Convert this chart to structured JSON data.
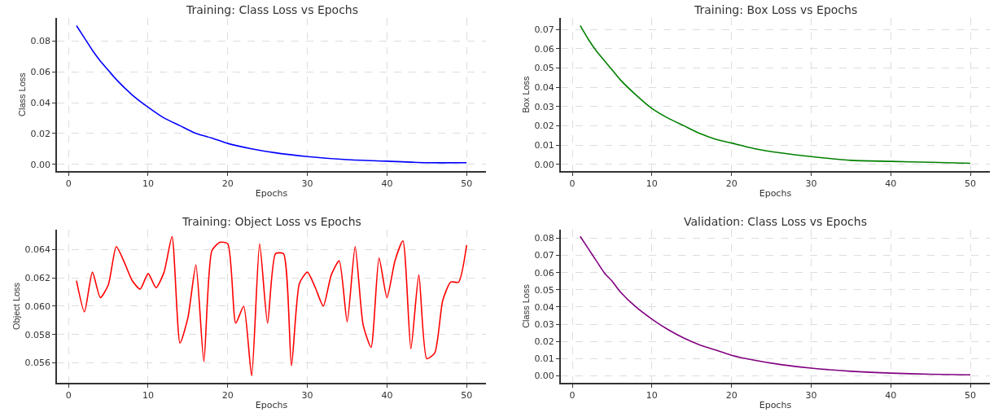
{
  "chart_data": [
    {
      "type": "line",
      "title": "Training: Class Loss vs Epochs",
      "xlabel": "Epochs",
      "ylabel": "Class Loss",
      "grid": true,
      "x": [
        1,
        2,
        3,
        4,
        5,
        6,
        8,
        10,
        12,
        14,
        16,
        18,
        20,
        23,
        26,
        30,
        35,
        40,
        45,
        50
      ],
      "series": [
        {
          "color": "#0000ff",
          "values": [
            0.09,
            0.082,
            0.074,
            0.067,
            0.061,
            0.055,
            0.045,
            0.037,
            0.03,
            0.025,
            0.02,
            0.017,
            0.0135,
            0.01,
            0.0074,
            0.005,
            0.003,
            0.002,
            0.001,
            0.001
          ]
        }
      ],
      "xlim": [
        -1.45,
        52.45
      ],
      "xticks": [
        0,
        10,
        20,
        30,
        40,
        50
      ],
      "ylim": [
        -0.0045,
        0.095
      ],
      "yticks": [
        {
          "value": 0,
          "label": "0.00"
        },
        {
          "value": 0.02,
          "label": "0.02"
        },
        {
          "value": 0.04,
          "label": "0.04"
        },
        {
          "value": 0.06,
          "label": "0.06"
        },
        {
          "value": 0.08,
          "label": "0.08"
        }
      ]
    },
    {
      "type": "line",
      "title": "Training: Box Loss vs Epochs",
      "xlabel": "Epochs",
      "ylabel": "Box Loss",
      "grid": true,
      "x": [
        1,
        2,
        3,
        4,
        5,
        6,
        8,
        10,
        12,
        14,
        16,
        18,
        20,
        23,
        26,
        30,
        35,
        40,
        45,
        50
      ],
      "series": [
        {
          "color": "#008000",
          "values": [
            0.072,
            0.065,
            0.059,
            0.054,
            0.049,
            0.044,
            0.036,
            0.029,
            0.024,
            0.02,
            0.016,
            0.013,
            0.011,
            0.008,
            0.006,
            0.004,
            0.002,
            0.0015,
            0.001,
            0.0005
          ]
        }
      ],
      "xlim": [
        -1.45,
        52.45
      ],
      "xticks": [
        0,
        10,
        20,
        30,
        40,
        50
      ],
      "ylim": [
        -0.0036,
        0.076
      ],
      "yticks": [
        {
          "value": 0,
          "label": "0.00"
        },
        {
          "value": 0.01,
          "label": "0.01"
        },
        {
          "value": 0.02,
          "label": "0.02"
        },
        {
          "value": 0.03,
          "label": "0.03"
        },
        {
          "value": 0.04,
          "label": "0.04"
        },
        {
          "value": 0.05,
          "label": "0.05"
        },
        {
          "value": 0.06,
          "label": "0.06"
        },
        {
          "value": 0.07,
          "label": "0.07"
        }
      ]
    },
    {
      "type": "line",
      "title": "Training: Object Loss vs Epochs",
      "xlabel": "Epochs",
      "ylabel": "Object Loss",
      "grid": true,
      "x": [
        1,
        2,
        3,
        4,
        5,
        6,
        7,
        8,
        9,
        10,
        11,
        12,
        13,
        14,
        15,
        16,
        17,
        18,
        19,
        20,
        21,
        22,
        23,
        24,
        25,
        26,
        27,
        28,
        29,
        30,
        31,
        32,
        33,
        34,
        35,
        36,
        37,
        38,
        39,
        40,
        41,
        42,
        43,
        44,
        45,
        46,
        47,
        48,
        49,
        50
      ],
      "series": [
        {
          "color": "#ff0000",
          "values": [
            0.0618,
            0.0596,
            0.0624,
            0.0606,
            0.0615,
            0.0642,
            0.0631,
            0.0618,
            0.0612,
            0.0623,
            0.0613,
            0.0624,
            0.0649,
            0.0574,
            0.0592,
            0.0629,
            0.0561,
            0.0639,
            0.0645,
            0.0644,
            0.0588,
            0.06,
            0.0551,
            0.0644,
            0.0588,
            0.0637,
            0.0637,
            0.0558,
            0.0616,
            0.0624,
            0.0613,
            0.06,
            0.0622,
            0.0632,
            0.0589,
            0.0642,
            0.0587,
            0.0571,
            0.0634,
            0.0606,
            0.0632,
            0.0646,
            0.057,
            0.0622,
            0.0563,
            0.0567,
            0.0604,
            0.0617,
            0.0617,
            0.0643
          ]
        }
      ],
      "xlim": [
        -1.45,
        52.45
      ],
      "xticks": [
        0,
        10,
        20,
        30,
        40,
        50
      ],
      "ylim": [
        0.0546,
        0.0654
      ],
      "yticks": [
        {
          "value": 0.056,
          "label": "0.056"
        },
        {
          "value": 0.058,
          "label": "0.058"
        },
        {
          "value": 0.06,
          "label": "0.060"
        },
        {
          "value": 0.062,
          "label": "0.062"
        },
        {
          "value": 0.064,
          "label": "0.064"
        }
      ]
    },
    {
      "type": "line",
      "title": "Validation: Class Loss vs Epochs",
      "xlabel": "Epochs",
      "ylabel": "Class Loss",
      "grid": true,
      "x": [
        1,
        2,
        3,
        4,
        5,
        6,
        8,
        10,
        12,
        14,
        16,
        18,
        20,
        23,
        26,
        30,
        35,
        40,
        45,
        50
      ],
      "series": [
        {
          "color": "#800080",
          "values": [
            0.081,
            0.074,
            0.067,
            0.06,
            0.055,
            0.049,
            0.04,
            0.033,
            0.027,
            0.022,
            0.018,
            0.015,
            0.012,
            0.009,
            0.0067,
            0.0045,
            0.0027,
            0.0016,
            0.001,
            0.0006
          ]
        }
      ],
      "xlim": [
        -1.45,
        52.45
      ],
      "xticks": [
        0,
        10,
        20,
        30,
        40,
        50
      ],
      "ylim": [
        -0.004,
        0.085
      ],
      "yticks": [
        {
          "value": 0,
          "label": "0.00"
        },
        {
          "value": 0.01,
          "label": "0.01"
        },
        {
          "value": 0.02,
          "label": "0.02"
        },
        {
          "value": 0.03,
          "label": "0.03"
        },
        {
          "value": 0.04,
          "label": "0.04"
        },
        {
          "value": 0.05,
          "label": "0.05"
        },
        {
          "value": 0.06,
          "label": "0.06"
        },
        {
          "value": 0.07,
          "label": "0.07"
        },
        {
          "value": 0.08,
          "label": "0.08"
        }
      ]
    }
  ]
}
